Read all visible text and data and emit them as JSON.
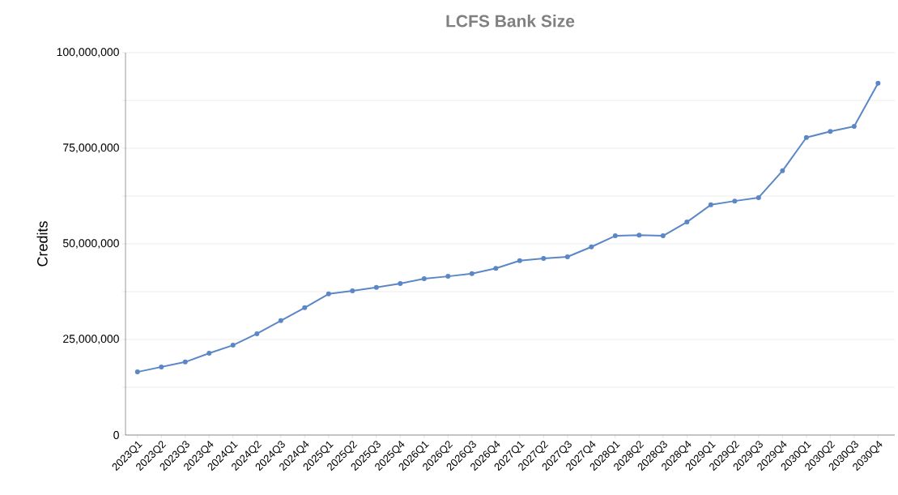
{
  "chart_data": {
    "type": "line",
    "title": "LCFS Bank Size",
    "ylabel": "Credits",
    "categories": [
      "2023Q1",
      "2023Q2",
      "2023Q3",
      "2023Q4",
      "2024Q1",
      "2024Q2",
      "2024Q3",
      "2024Q4",
      "2025Q1",
      "2025Q2",
      "2025Q3",
      "2025Q4",
      "2026Q1",
      "2026Q2",
      "2026Q3",
      "2026Q4",
      "2027Q1",
      "2027Q2",
      "2027Q3",
      "2027Q4",
      "2028Q1",
      "2028Q2",
      "2028Q3",
      "2028Q4",
      "2029Q1",
      "2029Q2",
      "2029Q3",
      "2029Q4",
      "2030Q1",
      "2030Q2",
      "2030Q3",
      "2030Q4"
    ],
    "series": [
      {
        "color": "#5b87c6",
        "values": [
          16500000,
          17800000,
          19100000,
          21400000,
          23500000,
          26500000,
          29900000,
          33300000,
          36900000,
          37700000,
          38600000,
          39600000,
          40900000,
          41500000,
          42200000,
          43600000,
          45600000,
          46200000,
          46600000,
          49200000,
          52100000,
          52300000,
          52100000,
          55700000,
          60200000,
          61200000,
          62100000,
          69100000,
          77800000,
          79400000,
          80700000,
          92000000
        ]
      }
    ],
    "ylim": [
      0,
      100000000
    ],
    "yticks": [
      {
        "value": 0,
        "label": "0"
      },
      {
        "value": 12500000,
        "label": null
      },
      {
        "value": 25000000,
        "label": "25,000,000"
      },
      {
        "value": 37500000,
        "label": null
      },
      {
        "value": 50000000,
        "label": "50,000,000"
      },
      {
        "value": 62500000,
        "label": null
      },
      {
        "value": 75000000,
        "label": "75,000,000"
      },
      {
        "value": 87500000,
        "label": null
      },
      {
        "value": 100000000,
        "label": "100,000,000"
      }
    ],
    "grid": "y",
    "marker": "circle",
    "line_style": "solid"
  }
}
